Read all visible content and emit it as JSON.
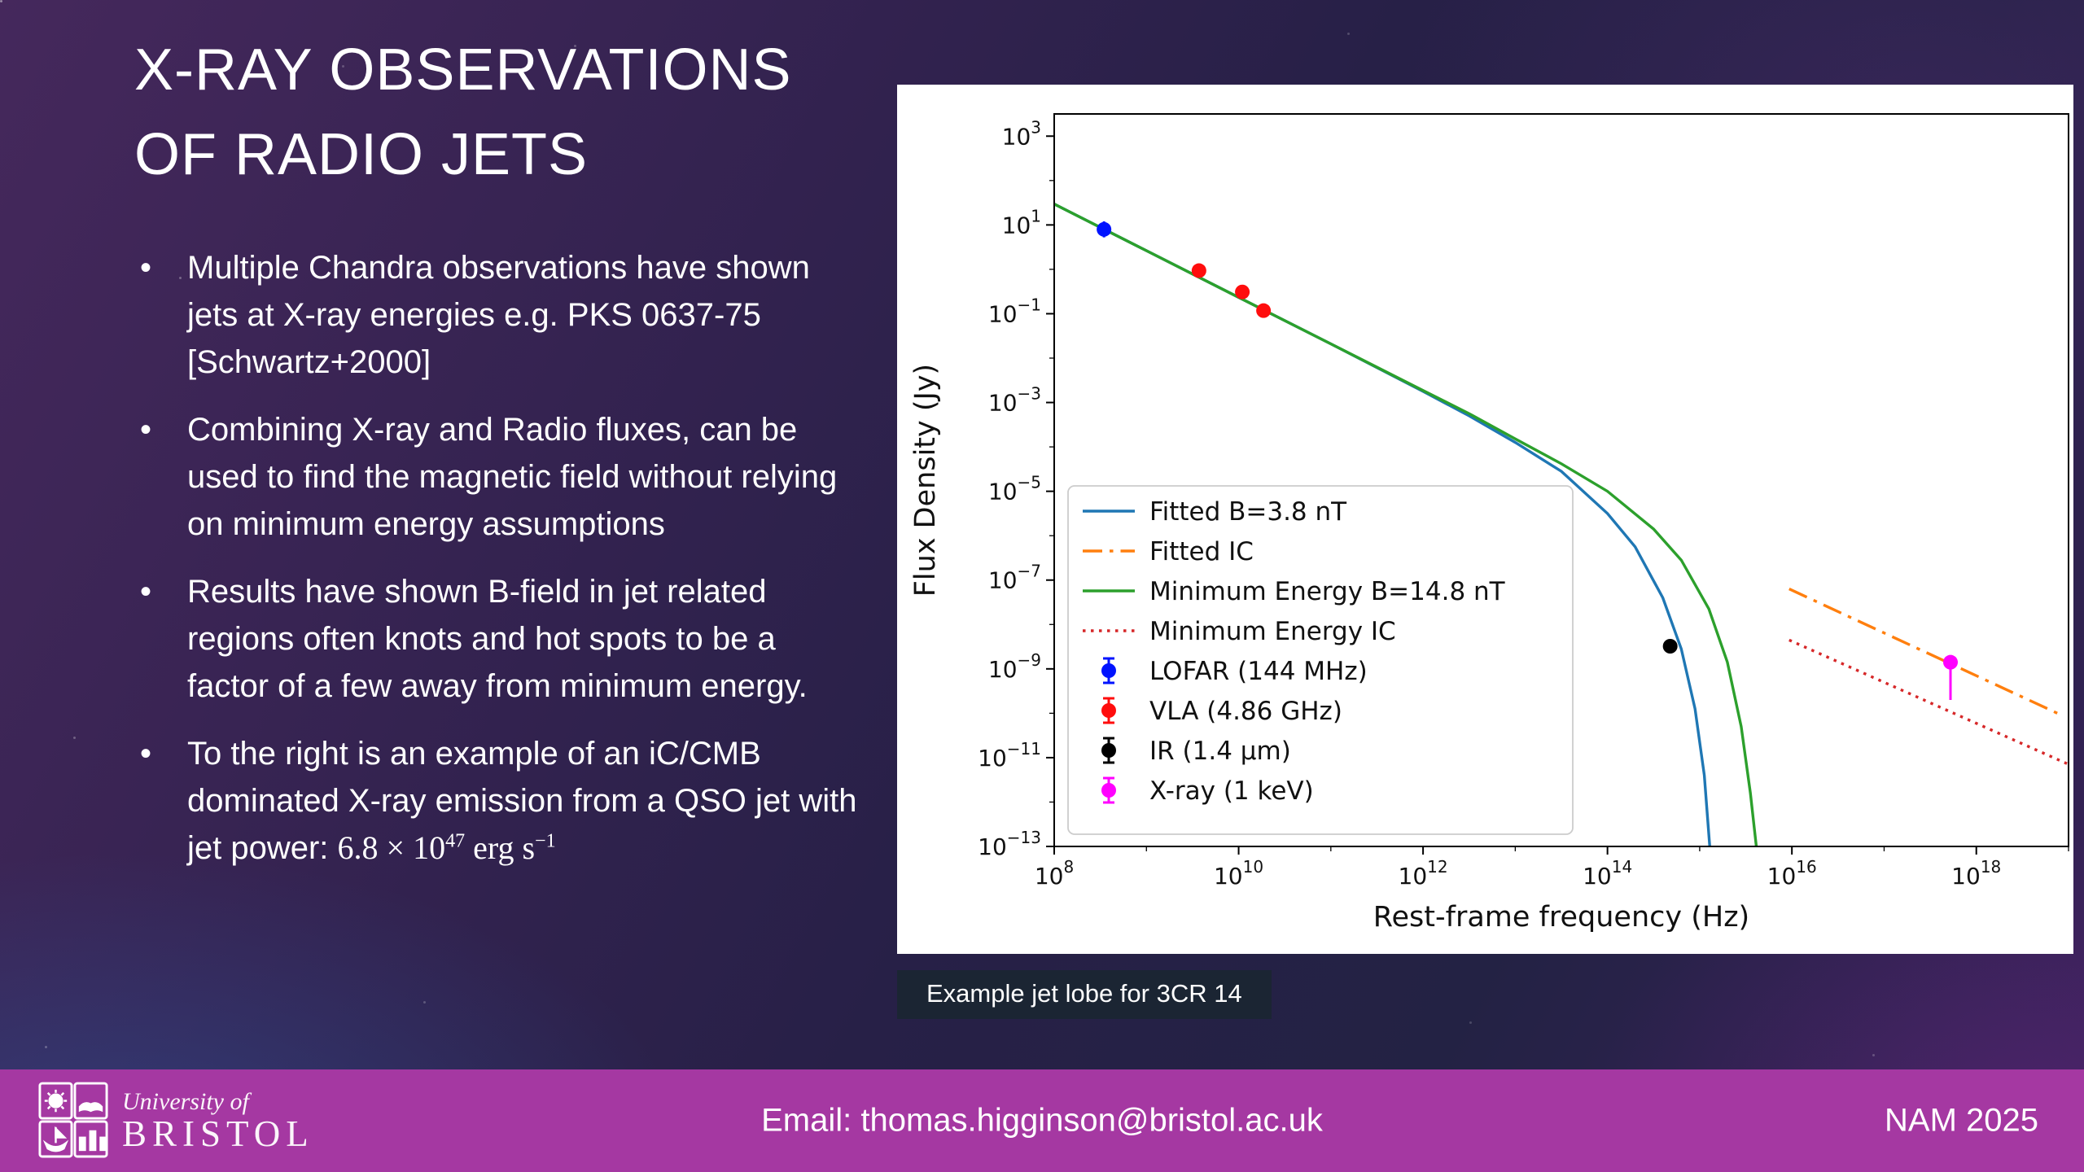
{
  "slide": {
    "title_line1": "X-RAY OBSERVATIONS",
    "title_line2": "OF RADIO JETS",
    "bullets": [
      {
        "text": "Multiple Chandra observations have shown jets at X-ray energies e.g. PKS 0637-75 [Schwartz+2000]"
      },
      {
        "text": "Combining X-ray and Radio fluxes, can be used to find the magnetic field without relying on minimum energy assumptions"
      },
      {
        "text": "Results have shown B-field in jet related regions often knots and hot spots to be a factor of a few away from minimum energy."
      },
      {
        "text": "To the right is an example of an iC/CMB dominated X-ray emission from a QSO jet with jet power:",
        "math": {
          "coefficient": "6.8",
          "times": "×",
          "base": "10",
          "exponent": "47",
          "unit": "erg s",
          "unit_exponent": "−1"
        }
      }
    ],
    "caption": "Example jet lobe for 3CR 14"
  },
  "footer": {
    "email": "Email: thomas.higginson@bristol.ac.uk",
    "event": "NAM 2025",
    "logo_line1": "University of",
    "logo_line2": "BRISTOL",
    "bar_color": "#a538a2"
  },
  "chart_data": {
    "type": "line",
    "title": "",
    "xlabel": "Rest-frame frequency (Hz)",
    "ylabel": "Flux Density (Jy)",
    "xscale": "log",
    "yscale": "log",
    "grid": false,
    "legend_position": "center-left",
    "axes": {
      "x_log_range": [
        8,
        19
      ],
      "y_log_range": [
        -13,
        3.5
      ],
      "x_tick_exponents": [
        8,
        10,
        12,
        14,
        16,
        18
      ],
      "y_tick_exponents": [
        3,
        1,
        -1,
        -3,
        -5,
        -7,
        -9,
        -11,
        -13
      ]
    },
    "line_series": [
      {
        "name": "Fitted B=3.8 nT",
        "color": "#1f77b4",
        "style": "solid",
        "points_log10": [
          [
            8,
            1.47
          ],
          [
            9,
            0.42
          ],
          [
            10,
            -0.63
          ],
          [
            11,
            -1.68
          ],
          [
            12,
            -2.75
          ],
          [
            12.5,
            -3.3
          ],
          [
            13,
            -3.9
          ],
          [
            13.5,
            -4.55
          ],
          [
            14,
            -5.5
          ],
          [
            14.3,
            -6.25
          ],
          [
            14.6,
            -7.4
          ],
          [
            14.8,
            -8.55
          ],
          [
            14.95,
            -9.9
          ],
          [
            15.05,
            -11.4
          ],
          [
            15.12,
            -13.3
          ]
        ]
      },
      {
        "name": "Fitted IC",
        "color": "#ff7f0e",
        "style": "dashdot",
        "points_log10": [
          [
            15.97,
            -7.2
          ],
          [
            18.88,
            -10.0
          ]
        ]
      },
      {
        "name": "Minimum Energy B=14.8 nT",
        "color": "#2ca02c",
        "style": "solid",
        "points_log10": [
          [
            8,
            1.47
          ],
          [
            9,
            0.42
          ],
          [
            10,
            -0.63
          ],
          [
            11,
            -1.68
          ],
          [
            12,
            -2.73
          ],
          [
            12.5,
            -3.25
          ],
          [
            13,
            -3.82
          ],
          [
            13.5,
            -4.38
          ],
          [
            14,
            -5.0
          ],
          [
            14.5,
            -5.85
          ],
          [
            14.8,
            -6.55
          ],
          [
            15.1,
            -7.65
          ],
          [
            15.3,
            -8.85
          ],
          [
            15.45,
            -10.3
          ],
          [
            15.55,
            -11.8
          ],
          [
            15.63,
            -13.3
          ]
        ]
      },
      {
        "name": "Minimum Energy IC",
        "color": "#d62728",
        "style": "dotted",
        "points_log10": [
          [
            15.97,
            -8.35
          ],
          [
            19.0,
            -11.15
          ]
        ]
      }
    ],
    "scatter_series": [
      {
        "name": "LOFAR (144 MHz)",
        "color": "#0013ff",
        "points": [
          {
            "logx": 8.54,
            "logy": 0.9,
            "err": 0.18
          }
        ]
      },
      {
        "name": "VLA (4.86 GHz)",
        "color": "#ff0d0d",
        "points": [
          {
            "logx": 9.57,
            "logy": -0.03,
            "err": 0.12
          },
          {
            "logx": 10.04,
            "logy": -0.51,
            "err": 0.12
          },
          {
            "logx": 10.27,
            "logy": -0.93,
            "err": 0.12
          }
        ]
      },
      {
        "name": "IR (1.4 μm)",
        "color": "#000000",
        "points": [
          {
            "logx": 14.68,
            "logy": -8.49,
            "err": 0.1
          }
        ]
      },
      {
        "name": "X-ray (1 keV)",
        "color": "#ff00ff",
        "points": [
          {
            "logx": 17.72,
            "logy": -8.85,
            "err_up": 0.12,
            "err_down": 0.85
          }
        ]
      }
    ]
  }
}
